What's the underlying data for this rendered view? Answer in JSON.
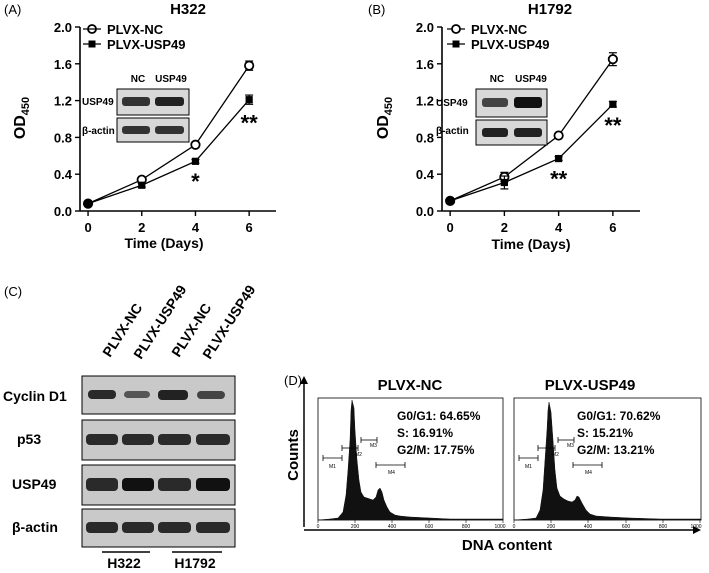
{
  "panel_labels": {
    "a": "(A)",
    "b": "(B)",
    "c": "(C)",
    "d": "(D)"
  },
  "chart_data": [
    {
      "type": "line",
      "title": "H322",
      "xlabel": "Time (Days)",
      "ylabel": "OD",
      "ylabel_sub": "450",
      "x": [
        0,
        2,
        4,
        6
      ],
      "xticks": [
        "0",
        "2",
        "4",
        "6"
      ],
      "yticks": [
        "0.0",
        "0.4",
        "0.8",
        "1.2",
        "1.6",
        "2.0"
      ],
      "xlim": [
        -0.3,
        7
      ],
      "ylim": [
        0,
        2.0
      ],
      "series": [
        {
          "name": "PLVX-NC",
          "marker": "open-circle",
          "values": [
            0.08,
            0.34,
            0.72,
            1.58
          ],
          "errors": [
            0.01,
            0.02,
            0.03,
            0.05
          ]
        },
        {
          "name": "PLVX-USP49",
          "marker": "filled-square",
          "values": [
            0.08,
            0.28,
            0.54,
            1.21
          ],
          "errors": [
            0.01,
            0.02,
            0.02,
            0.05
          ]
        }
      ],
      "annotations": [
        {
          "x": 4,
          "text": "*"
        },
        {
          "x": 6,
          "text": "**"
        }
      ],
      "inset_blot": {
        "columns": [
          "NC",
          "USP49"
        ],
        "rows": [
          "USP49",
          "β-actin"
        ]
      }
    },
    {
      "type": "line",
      "title": "H1792",
      "xlabel": "Time (Days)",
      "ylabel": "OD",
      "ylabel_sub": "450",
      "x": [
        0,
        2,
        4,
        6
      ],
      "xticks": [
        "0",
        "2",
        "4",
        "6"
      ],
      "yticks": [
        "0.0",
        "0.4",
        "0.8",
        "1.2",
        "1.6",
        "2.0"
      ],
      "xlim": [
        -0.3,
        7
      ],
      "ylim": [
        0,
        2.0
      ],
      "series": [
        {
          "name": "PLVX-NC",
          "marker": "open-circle",
          "values": [
            0.11,
            0.37,
            0.82,
            1.65
          ],
          "errors": [
            0.01,
            0.05,
            0.02,
            0.07
          ]
        },
        {
          "name": "PLVX-USP49",
          "marker": "filled-square",
          "values": [
            0.11,
            0.31,
            0.57,
            1.16
          ],
          "errors": [
            0.01,
            0.07,
            0.02,
            0.03
          ]
        }
      ],
      "annotations": [
        {
          "x": 4,
          "text": "**"
        },
        {
          "x": 6,
          "text": "**"
        }
      ],
      "inset_blot": {
        "columns": [
          "NC",
          "USP49"
        ],
        "rows": [
          "USP49",
          "β-actin"
        ]
      }
    }
  ],
  "western_blot": {
    "lanes": [
      "PLVX-NC",
      "PLVX-USP49",
      "PLVX-NC",
      "PLVX-USP49"
    ],
    "rows": [
      "Cyclin D1",
      "p53",
      "USP49",
      "β-actin"
    ],
    "groups": [
      "H322",
      "H1792"
    ]
  },
  "flow_cytometry": {
    "axis_label_y": "Counts",
    "axis_label_x": "DNA content",
    "xticks": [
      "0",
      "200",
      "400",
      "600",
      "800",
      "1000"
    ],
    "gates": [
      "M1",
      "M2",
      "M3",
      "M4"
    ],
    "panels": [
      {
        "title": "PLVX-NC",
        "stats": [
          "G0/G1: 64.65%",
          "S: 16.91%",
          "G2/M: 17.75%"
        ]
      },
      {
        "title": "PLVX-USP49",
        "stats": [
          "G0/G1: 70.62%",
          "S: 15.21%",
          "G2/M: 13.21%"
        ]
      }
    ]
  }
}
